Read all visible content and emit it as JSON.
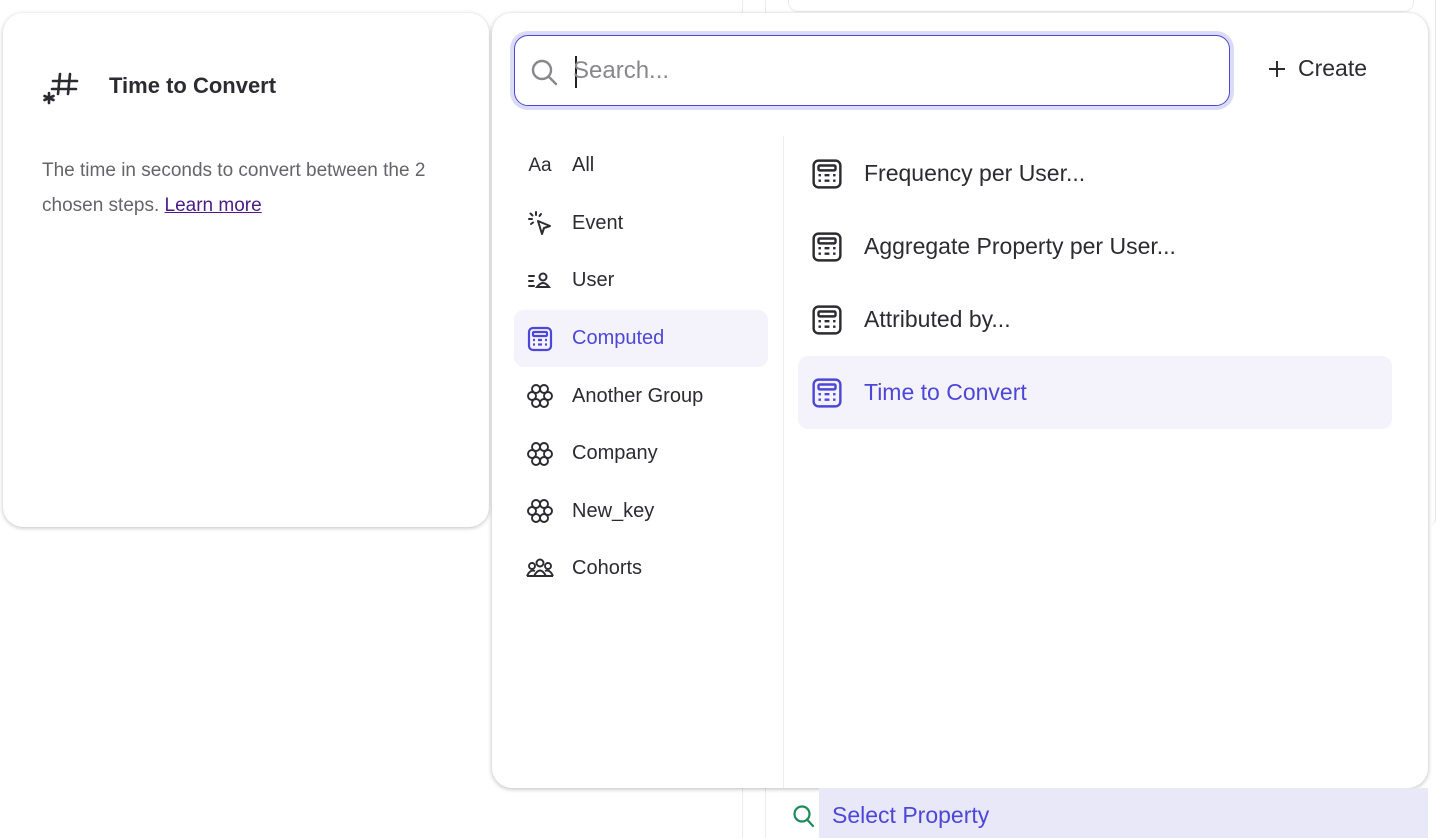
{
  "detail_card": {
    "title": "Time to Convert",
    "icon": "hash-computed-icon",
    "description": "The time in seconds to convert between the 2 chosen steps.",
    "link": "Learn more"
  },
  "search": {
    "placeholder": "Search...",
    "value": ""
  },
  "create_label": "Create",
  "categories": [
    {
      "label": "All",
      "icon": "text-aa-icon"
    },
    {
      "label": "Event",
      "icon": "cursor-click-icon"
    },
    {
      "label": "User",
      "icon": "user-list-icon"
    },
    {
      "label": "Computed",
      "icon": "calculator-icon",
      "selected": true
    },
    {
      "label": "Another Group",
      "icon": "group-icon"
    },
    {
      "label": "Company",
      "icon": "group-icon"
    },
    {
      "label": "New_key",
      "icon": "group-icon"
    },
    {
      "label": "Cohorts",
      "icon": "cohorts-icon"
    }
  ],
  "items": [
    {
      "label": "Frequency per User..."
    },
    {
      "label": "Aggregate Property per User..."
    },
    {
      "label": "Attributed by..."
    },
    {
      "label": "Time to Convert",
      "selected": true
    }
  ],
  "select_property": "Select Property",
  "colors": {
    "accent": "#4d47d9",
    "selected_bg": "#f4f3fc",
    "link": "#4b1b86",
    "search_icon_green": "#1f8a5b"
  }
}
